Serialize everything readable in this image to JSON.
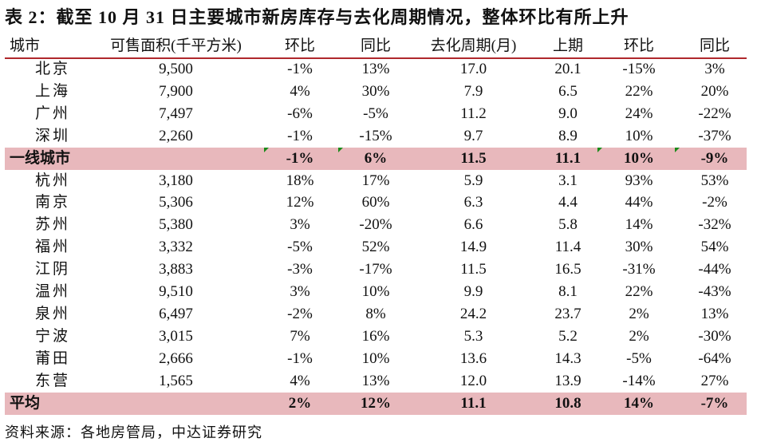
{
  "title": "表 2：截至 10 月 31 日主要城市新房库存与去化周期情况，整体环比有所上升",
  "headers": [
    "城市",
    "可售面积(千平方米)",
    "环比",
    "同比",
    "去化周期(月)",
    "上期",
    "环比",
    "同比"
  ],
  "rows": [
    [
      "北京",
      "9,500",
      "-1%",
      "13%",
      "17.0",
      "20.1",
      "-15%",
      "3%"
    ],
    [
      "上海",
      "7,900",
      "4%",
      "30%",
      "7.9",
      "6.5",
      "22%",
      "20%"
    ],
    [
      "广州",
      "7,497",
      "-6%",
      "-5%",
      "11.2",
      "9.0",
      "24%",
      "-22%"
    ],
    [
      "深圳",
      "2,260",
      "-1%",
      "-15%",
      "9.7",
      "8.9",
      "10%",
      "-37%"
    ],
    [
      "一线城市",
      "",
      "-1%",
      "6%",
      "11.5",
      "11.1",
      "10%",
      "-9%"
    ],
    [
      "杭州",
      "3,180",
      "18%",
      "17%",
      "5.9",
      "3.1",
      "93%",
      "53%"
    ],
    [
      "南京",
      "5,306",
      "12%",
      "60%",
      "6.3",
      "4.4",
      "44%",
      "-2%"
    ],
    [
      "苏州",
      "5,380",
      "3%",
      "-20%",
      "6.6",
      "5.8",
      "14%",
      "-32%"
    ],
    [
      "福州",
      "3,332",
      "-5%",
      "52%",
      "14.9",
      "11.4",
      "30%",
      "54%"
    ],
    [
      "江阴",
      "3,883",
      "-3%",
      "-17%",
      "11.5",
      "16.5",
      "-31%",
      "-44%"
    ],
    [
      "温州",
      "9,510",
      "3%",
      "10%",
      "9.9",
      "8.1",
      "22%",
      "-43%"
    ],
    [
      "泉州",
      "6,497",
      "-2%",
      "8%",
      "24.2",
      "23.7",
      "2%",
      "13%"
    ],
    [
      "宁波",
      "3,015",
      "7%",
      "16%",
      "5.3",
      "5.2",
      "2%",
      "-30%"
    ],
    [
      "莆田",
      "2,666",
      "-1%",
      "10%",
      "13.6",
      "14.3",
      "-5%",
      "-64%"
    ],
    [
      "东营",
      "1,565",
      "4%",
      "13%",
      "12.0",
      "13.9",
      "-14%",
      "27%"
    ],
    [
      "平均",
      "",
      "2%",
      "12%",
      "11.1",
      "10.8",
      "14%",
      "-7%"
    ]
  ],
  "highlight_rows": [
    4,
    15
  ],
  "highlight_color": "#e8b8bc",
  "rule_color": "#b0282c",
  "source": "资料来源：各地房管局，中达证券研究"
}
